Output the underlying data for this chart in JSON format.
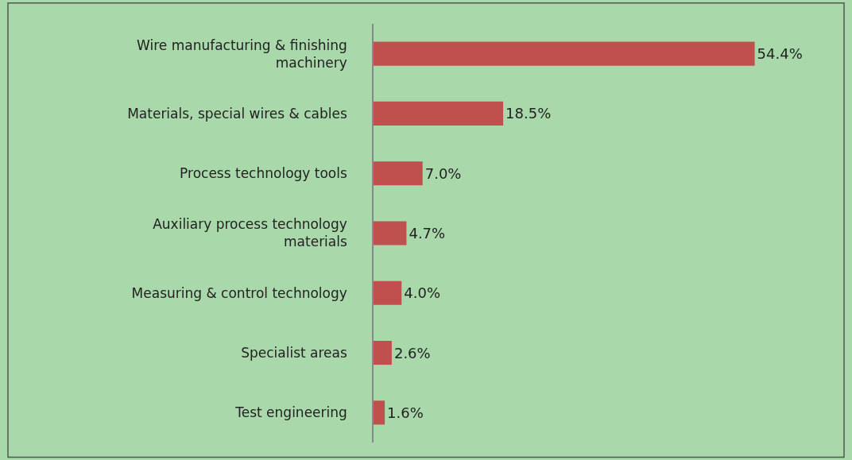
{
  "chart_data": {
    "type": "bar",
    "orientation": "horizontal",
    "categories": [
      "Wire manufacturing & finishing machinery",
      "Materials, special wires & cables",
      "Process technology tools",
      "Auxiliary process technology materials",
      "Measuring & control technology",
      "Specialist areas",
      "Test engineering"
    ],
    "values": [
      54.4,
      18.5,
      7.0,
      4.7,
      4.0,
      2.6,
      1.6
    ],
    "value_labels": [
      "54.4%",
      "18.5%",
      "7.0%",
      "4.7%",
      "4.0%",
      "2.6%",
      "1.6%"
    ],
    "color": "#c0504d",
    "tick_labels": "y",
    "grid": false,
    "legend": false
  }
}
